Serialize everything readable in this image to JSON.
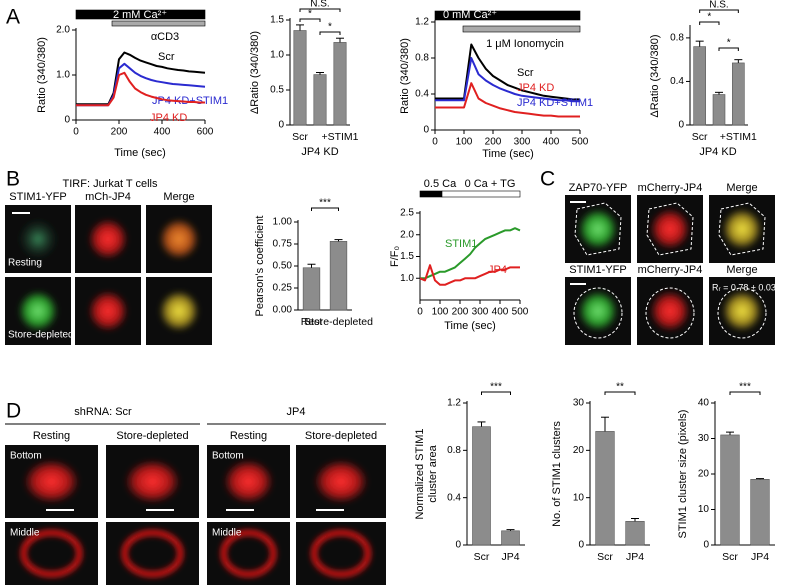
{
  "panel_letters": [
    "A",
    "B",
    "C",
    "D"
  ],
  "tirf": {
    "title": "TIRF: Jurkat T cells",
    "columns": [
      "STIM1-YFP",
      "mCh-JP4",
      "Merge"
    ],
    "rows": [
      "Resting",
      "Store-depleted"
    ]
  },
  "colocalization": {
    "rows": [
      [
        "ZAP70-YFP",
        "mCherry-JP4",
        "Merge"
      ],
      [
        "STIM1-YFP",
        "mCherry-JP4",
        "Merge"
      ]
    ],
    "annotation": "Rᵣ = 0.78 ± 0.03"
  },
  "confocal": {
    "groups": [
      "shRNA: Scr",
      "JP4"
    ],
    "columns": [
      "Resting",
      "Store-depleted",
      "Resting",
      "Store-depleted"
    ],
    "row_labels": [
      [
        "Bottom",
        "Middle"
      ],
      [
        "Bottom",
        "Middle"
      ]
    ]
  },
  "chart_data": [
    {
      "type": "line",
      "annotations": [
        "2 mM Ca²⁺",
        "αCD3"
      ],
      "x": [
        0,
        25,
        50,
        75,
        100,
        125,
        150,
        175,
        200,
        225,
        250,
        275,
        300,
        325,
        350,
        375,
        400,
        425,
        450,
        475,
        500,
        525,
        550,
        575,
        600
      ],
      "series": [
        {
          "name": "Scr",
          "color": "#000000",
          "values": [
            0.35,
            0.35,
            0.35,
            0.35,
            0.35,
            0.35,
            0.35,
            0.6,
            1.35,
            1.5,
            1.45,
            1.38,
            1.32,
            1.28,
            1.24,
            1.2,
            1.18,
            1.15,
            1.13,
            1.11,
            1.1,
            1.08,
            1.07,
            1.06,
            1.05
          ]
        },
        {
          "name": "JP4 KD+STIM1",
          "color": "#2b2bd0",
          "values": [
            0.33,
            0.33,
            0.33,
            0.33,
            0.33,
            0.33,
            0.33,
            0.55,
            1.15,
            1.25,
            1.15,
            1.05,
            0.98,
            0.93,
            0.89,
            0.86,
            0.84,
            0.82,
            0.8,
            0.79,
            0.78,
            0.77,
            0.76,
            0.75,
            0.74
          ]
        },
        {
          "name": "JP4 KD",
          "color": "#e02020",
          "values": [
            0.33,
            0.33,
            0.33,
            0.33,
            0.33,
            0.33,
            0.33,
            0.5,
            1.0,
            1.05,
            0.85,
            0.7,
            0.62,
            0.56,
            0.52,
            0.49,
            0.46,
            0.44,
            0.43,
            0.42,
            0.41,
            0.4,
            0.4,
            0.39,
            0.39
          ]
        }
      ],
      "xlabel": "Time (sec)",
      "ylabel": "Ratio (340/380)",
      "xlim": [
        0,
        600
      ],
      "xticks": [
        0,
        200,
        400,
        600
      ],
      "ylim": [
        0,
        2
      ],
      "yticks": [
        0,
        {
          "value": 1,
          "label": "1.0"
        },
        {
          "value": 2,
          "label": "2.0"
        }
      ]
    },
    {
      "type": "bar",
      "categories": [
        "Scr",
        null,
        "+STIM1"
      ],
      "values": [
        1.35,
        0.72,
        1.18
      ],
      "errors": [
        0.08,
        0.03,
        0.06
      ],
      "color": "#8c8c8c",
      "xlabel": "JP4 KD",
      "ylabel": "ΔRatio (340/380)",
      "significance": [
        "N.S.",
        "*",
        "*"
      ],
      "ylim": [
        0,
        1.5
      ],
      "yticks": [
        0,
        0.5,
        {
          "value": 1,
          "label": "1.0"
        },
        1.5
      ]
    },
    {
      "type": "line",
      "annotations": [
        "0 mM Ca²⁺",
        "1 μM Ionomycin"
      ],
      "x": [
        0,
        25,
        50,
        75,
        100,
        125,
        150,
        175,
        200,
        225,
        250,
        275,
        300,
        325,
        350,
        375,
        400,
        425,
        450,
        475,
        500
      ],
      "series": [
        {
          "name": "Scr",
          "color": "#000000",
          "values": [
            0.35,
            0.35,
            0.35,
            0.35,
            0.35,
            0.95,
            0.8,
            0.68,
            0.6,
            0.55,
            0.5,
            0.47,
            0.44,
            0.42,
            0.4,
            0.38,
            0.37,
            0.36,
            0.35,
            0.34,
            0.34
          ]
        },
        {
          "name": "JP4 KD",
          "color": "#e02020",
          "values": [
            0.25,
            0.25,
            0.25,
            0.25,
            0.25,
            0.52,
            0.35,
            0.3,
            0.27,
            0.24,
            0.22,
            0.2,
            0.19,
            0.18,
            0.17,
            0.16,
            0.16,
            0.15,
            0.15,
            0.15,
            0.15
          ]
        },
        {
          "name": "JP4 KD+STIM1",
          "color": "#2b2bd0",
          "values": [
            0.33,
            0.33,
            0.33,
            0.33,
            0.33,
            0.8,
            0.62,
            0.55,
            0.5,
            0.46,
            0.43,
            0.4,
            0.38,
            0.37,
            0.36,
            0.35,
            0.34,
            0.33,
            0.33,
            0.32,
            0.32
          ]
        }
      ],
      "xlabel": "Time (sec)",
      "ylabel": "Ratio (340/380)",
      "xlim": [
        0,
        500
      ],
      "xticks": [
        0,
        100,
        200,
        300,
        400,
        500
      ],
      "ylim": [
        0,
        1.2
      ],
      "yticks": [
        0,
        0.4,
        0.8,
        1.2
      ]
    },
    {
      "type": "bar",
      "categories": [
        "Scr",
        null,
        "+STIM1"
      ],
      "values": [
        0.72,
        0.28,
        0.57
      ],
      "errors": [
        0.05,
        0.02,
        0.03
      ],
      "color": "#8c8c8c",
      "xlabel": "JP4 KD",
      "ylabel": "ΔRatio (340/380)",
      "significance": [
        "N.S.",
        "*",
        "*"
      ],
      "ylim": [
        0,
        0.9
      ],
      "yticks": [
        0,
        0.4,
        0.8
      ]
    },
    {
      "type": "bar",
      "categories": [
        "Rest",
        "Store-depleted"
      ],
      "values": [
        0.48,
        0.78
      ],
      "errors": [
        0.04,
        0.02
      ],
      "color": "#8c8c8c",
      "ylabel": "Pearson's coefficient",
      "significance": [
        "***"
      ],
      "ylim": [
        0,
        1
      ],
      "yticks": [
        {
          "value": 0,
          "label": "0.00"
        },
        {
          "value": 0.25,
          "label": "0.25"
        },
        {
          "value": 0.5,
          "label": "0.50"
        },
        {
          "value": 0.75,
          "label": "0.75"
        },
        {
          "value": 1,
          "label": "1.00"
        }
      ]
    },
    {
      "type": "line",
      "annotations": [
        "0.5 Ca",
        "0 Ca + TG"
      ],
      "x": [
        0,
        25,
        50,
        75,
        100,
        125,
        150,
        175,
        200,
        225,
        250,
        275,
        300,
        325,
        350,
        375,
        400,
        425,
        450,
        475,
        500
      ],
      "series": [
        {
          "name": "STIM1",
          "color": "#2a9a2a",
          "values": [
            1.0,
            1.0,
            1.05,
            1.1,
            1.15,
            1.15,
            1.2,
            1.25,
            1.35,
            1.45,
            1.55,
            1.7,
            1.8,
            1.9,
            1.95,
            2.0,
            2.05,
            2.1,
            2.1,
            2.15,
            2.1
          ]
        },
        {
          "name": "JP4",
          "color": "#e02020",
          "values": [
            1.0,
            0.95,
            1.3,
            0.95,
            0.85,
            0.85,
            0.9,
            0.95,
            0.95,
            1.0,
            1.0,
            1.0,
            1.05,
            1.1,
            1.15,
            1.15,
            1.2,
            1.2,
            1.25,
            1.25,
            1.25
          ]
        }
      ],
      "xlabel": "Time (sec)",
      "ylabel": "F/F₀",
      "xlim": [
        0,
        500
      ],
      "xticks": [
        0,
        100,
        200,
        300,
        400,
        500
      ],
      "ylim": [
        0.5,
        2.5
      ],
      "yticks": [
        {
          "value": 1,
          "label": "1.0"
        },
        1.5,
        {
          "value": 2,
          "label": "2.0"
        },
        2.5
      ]
    },
    {
      "type": "bar",
      "categories": [
        "Scr",
        "JP4"
      ],
      "values": [
        1.0,
        0.12
      ],
      "errors": [
        0.04,
        0.01
      ],
      "color": "#8c8c8c",
      "ylabel": [
        "Normalized STIM1",
        "cluster area"
      ],
      "significance": [
        "***"
      ],
      "ylim": [
        0,
        1.2
      ],
      "yticks": [
        0,
        0.4,
        0.8,
        1.2
      ]
    },
    {
      "type": "bar",
      "categories": [
        "Scr",
        "JP4"
      ],
      "values": [
        24,
        5
      ],
      "errors": [
        3,
        0.6
      ],
      "color": "#8c8c8c",
      "ylabel": "No. of STIM1 clusters",
      "significance": [
        "**"
      ],
      "ylim": [
        0,
        30
      ],
      "yticks": [
        0,
        10,
        20,
        30
      ]
    },
    {
      "type": "bar",
      "categories": [
        "Scr",
        "JP4"
      ],
      "values": [
        31,
        18.5
      ],
      "errors": [
        0.8,
        0.2
      ],
      "color": "#8c8c8c",
      "ylabel": "STIM1 cluster size (pixels)",
      "significance": [
        "***"
      ],
      "ylim": [
        0,
        40
      ],
      "yticks": [
        0,
        10,
        20,
        30,
        40
      ]
    }
  ]
}
